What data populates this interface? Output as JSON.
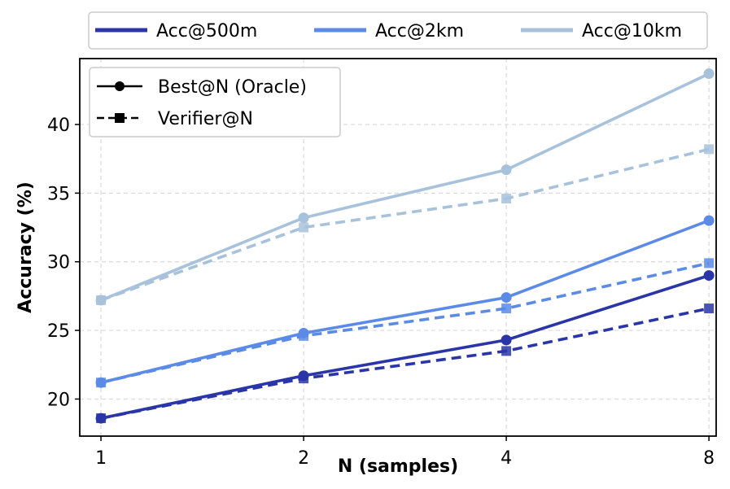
{
  "chart_data": {
    "type": "line",
    "xlabel": "N (samples)",
    "ylabel": "Accuracy (%)",
    "x": [
      1,
      2,
      4,
      8
    ],
    "x_tick_labels": [
      "1",
      "2",
      "4",
      "8"
    ],
    "x_scale": "log2",
    "xlim": [
      0.93,
      8.2
    ],
    "ylim": [
      17.3,
      44.8
    ],
    "y_ticks": [
      20,
      25,
      30,
      35,
      40
    ],
    "y_tick_labels": [
      "20",
      "25",
      "30",
      "35",
      "40"
    ],
    "grid": true,
    "colors": {
      "acc500": "#2a36a8",
      "acc2k": "#5b8be6",
      "acc10k": "#a8c2dc"
    },
    "series": [
      {
        "name": "Acc@500m Best@N (Oracle)",
        "metric": "Acc@500m",
        "method": "Best@N (Oracle)",
        "color": "#2a36a8",
        "style": "solid",
        "marker": "circle",
        "values": [
          18.6,
          21.7,
          24.3,
          29.0
        ]
      },
      {
        "name": "Acc@500m Verifier@N",
        "metric": "Acc@500m",
        "method": "Verifier@N",
        "color": "#2a36a8",
        "style": "dashed",
        "marker": "square",
        "values": [
          18.6,
          21.5,
          23.5,
          26.6
        ]
      },
      {
        "name": "Acc@2km Best@N (Oracle)",
        "metric": "Acc@2km",
        "method": "Best@N (Oracle)",
        "color": "#5b8be6",
        "style": "solid",
        "marker": "circle",
        "values": [
          21.2,
          24.8,
          27.4,
          33.0
        ]
      },
      {
        "name": "Acc@2km Verifier@N",
        "metric": "Acc@2km",
        "method": "Verifier@N",
        "color": "#5b8be6",
        "style": "dashed",
        "marker": "square",
        "values": [
          21.2,
          24.6,
          26.6,
          29.9
        ]
      },
      {
        "name": "Acc@10km Best@N (Oracle)",
        "metric": "Acc@10km",
        "method": "Best@N (Oracle)",
        "color": "#a8c2dc",
        "style": "solid",
        "marker": "circle",
        "values": [
          27.2,
          33.2,
          36.7,
          43.7
        ]
      },
      {
        "name": "Acc@10km Verifier@N",
        "metric": "Acc@10km",
        "method": "Verifier@N",
        "color": "#a8c2dc",
        "style": "dashed",
        "marker": "square",
        "values": [
          27.2,
          32.5,
          34.6,
          38.2
        ]
      }
    ],
    "legend_top": {
      "placement": "top-center, outside",
      "items": [
        {
          "label": "Acc@500m",
          "color": "#2a36a8"
        },
        {
          "label": "Acc@2km",
          "color": "#5b8be6"
        },
        {
          "label": "Acc@10km",
          "color": "#a8c2dc"
        }
      ]
    },
    "legend_inner": {
      "placement": "top-left",
      "items": [
        {
          "label": "Best@N (Oracle)",
          "style": "solid",
          "marker": "circle"
        },
        {
          "label": "Verifier@N",
          "style": "dashed",
          "marker": "square"
        }
      ]
    }
  }
}
